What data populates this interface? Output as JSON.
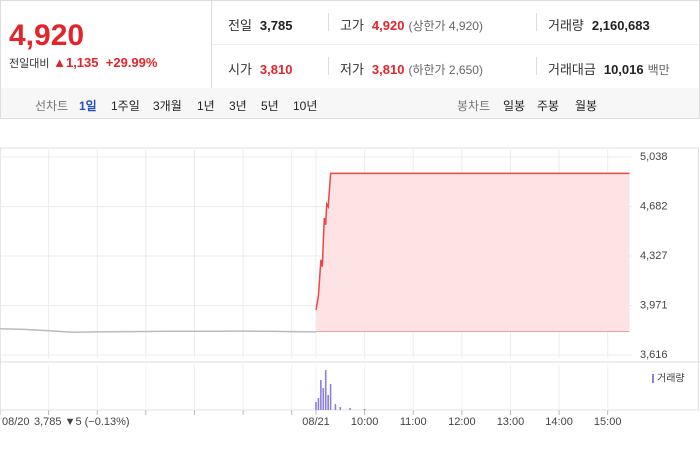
{
  "quote": {
    "price": "4,920",
    "change_label": "전일대비",
    "change": "1,135",
    "change_pct": "+29.99%"
  },
  "stats": [
    [
      {
        "label": "전일",
        "value": "3,785"
      },
      {
        "label": "고가",
        "value": "4,920",
        "note": "(상한가 4,920)"
      },
      {
        "label": "거래량",
        "value": "2,160,683"
      }
    ],
    [
      {
        "label": "시가",
        "value": "3,810"
      },
      {
        "label": "저가",
        "value": "3,810",
        "note": "(하한가 2,650)"
      },
      {
        "label": "거래대금",
        "value": "10,016",
        "unit": "백만"
      }
    ]
  ],
  "line_tabs": {
    "label": "선차트",
    "items": [
      "1일",
      "1주일",
      "3개월",
      "1년",
      "3년",
      "5년",
      "10년"
    ]
  },
  "candle_tabs": {
    "label": "봉차트",
    "items": [
      "일봉",
      "주봉",
      "월봉"
    ]
  },
  "chart_data": {
    "type": "line",
    "prev_note": "3,785 ▼5 (−0.13%)",
    "baseline": 3785,
    "xlim": [
      0,
      13
    ],
    "ylim": [
      3616,
      5038
    ],
    "yticks": [
      {
        "value": 5038,
        "label": "5,038"
      },
      {
        "value": 4682,
        "label": "4,682"
      },
      {
        "value": 4327,
        "label": "4,327"
      },
      {
        "value": 3971,
        "label": "3,971"
      },
      {
        "value": 3616,
        "label": "3,616"
      }
    ],
    "xticks": [
      {
        "value": 0,
        "label": "08/20"
      },
      {
        "value": 1,
        "label": null
      },
      {
        "value": 2,
        "label": null
      },
      {
        "value": 3,
        "label": null
      },
      {
        "value": 4,
        "label": null
      },
      {
        "value": 5,
        "label": null
      },
      {
        "value": 6,
        "label": null
      },
      {
        "value": 6.5,
        "label": "08/21"
      },
      {
        "value": 7.5,
        "label": "10:00"
      },
      {
        "value": 8.5,
        "label": "11:00"
      },
      {
        "value": 9.5,
        "label": "12:00"
      },
      {
        "value": 10.5,
        "label": "13:00"
      },
      {
        "value": 11.5,
        "label": "14:00"
      },
      {
        "value": 12.5,
        "label": "15:00"
      }
    ],
    "series": [
      {
        "name": "prev",
        "color": "#bbbbbb",
        "x": [
          0,
          0.5,
          1,
          1.5,
          2,
          2.5,
          3,
          3.5,
          4,
          4.5,
          5,
          5.5,
          6,
          6.5
        ],
        "values": [
          3805,
          3800,
          3790,
          3780,
          3782,
          3784,
          3785,
          3786,
          3787,
          3786,
          3788,
          3786,
          3784,
          3782
        ]
      },
      {
        "name": "today",
        "color": "#f04646",
        "x": [
          6.5,
          6.55,
          6.6,
          6.63,
          6.67,
          6.7,
          6.72,
          6.75,
          6.8,
          12.95
        ],
        "values": [
          3940,
          4040,
          4300,
          4250,
          4600,
          4550,
          4700,
          4680,
          4920,
          4920
        ]
      }
    ],
    "volume": {
      "name": "거래량",
      "color": "#8e7fd8",
      "vlim": [
        0,
        450000
      ],
      "x": [
        6.5,
        6.55,
        6.6,
        6.65,
        6.7,
        6.75,
        6.8,
        6.9,
        7.0,
        7.2,
        7.5
      ],
      "values": [
        80000,
        120000,
        300000,
        220000,
        400000,
        150000,
        260000,
        60000,
        30000,
        20000,
        10000
      ]
    }
  }
}
